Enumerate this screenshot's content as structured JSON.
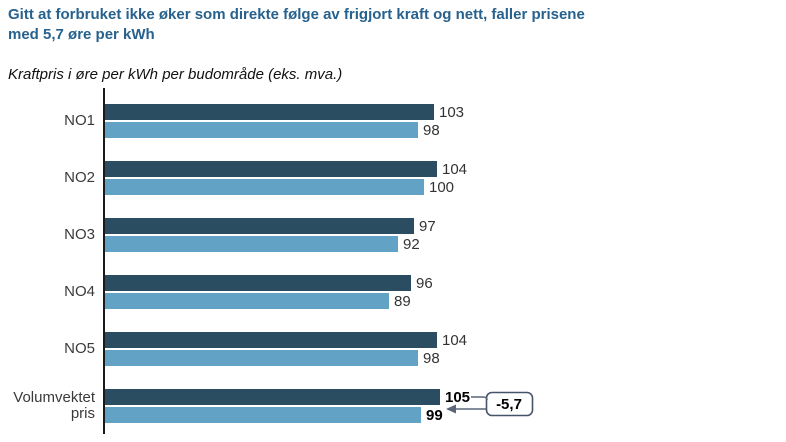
{
  "header": {
    "title": "Gitt at forbruket ikke øker som direkte følge av frigjort kraft og nett, faller prisene med 5,7 øre per kWh",
    "subtitle": "Kraftpris i øre per kWh per budområde (eks. mva.)"
  },
  "chart_data": {
    "type": "bar",
    "orientation": "horizontal",
    "title": "Kraftpris i øre per kWh per budområde (eks. mva.)",
    "categories": [
      "NO1",
      "NO2",
      "NO3",
      "NO4",
      "NO5",
      "Volumvektet pris"
    ],
    "series": [
      {
        "name": "dark_blue_bar",
        "color": "#2a4d62",
        "values": [
          103,
          104,
          97,
          96,
          104,
          105
        ]
      },
      {
        "name": "light_blue_bar",
        "color": "#62a3c5",
        "values": [
          98,
          100,
          92,
          89,
          98,
          99
        ]
      }
    ],
    "value_labels": true,
    "xlim": [
      0,
      110
    ],
    "grid": false,
    "legend": "none",
    "axis_color": "#1a1a1a",
    "annotation": {
      "label": "-5,7",
      "applies_to": "Volumvektet pris",
      "box_border_color": "#46546a"
    }
  }
}
